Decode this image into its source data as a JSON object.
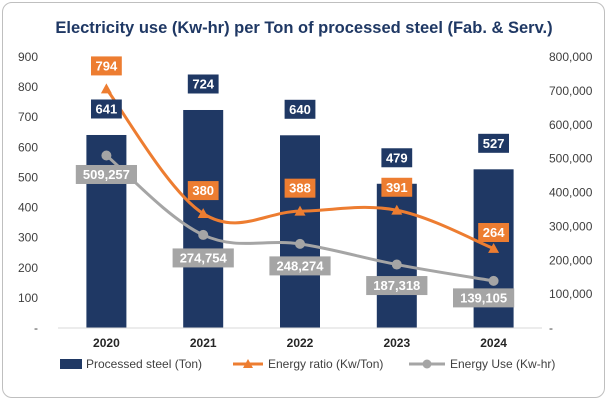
{
  "chart_data": {
    "type": "bar",
    "title": "Electricity use (Kw-hr) per Ton of processed steel (Fab. & Serv.)",
    "categories": [
      "2020",
      "2021",
      "2022",
      "2023",
      "2024"
    ],
    "y_left": {
      "range": [
        0,
        900
      ],
      "ticks": [
        0,
        100,
        200,
        300,
        400,
        500,
        600,
        700,
        800,
        900
      ],
      "tick_labels": [
        "-",
        "100",
        "200",
        "300",
        "400",
        "500",
        "600",
        "700",
        "800",
        "900"
      ]
    },
    "y_right": {
      "range": [
        0,
        800000
      ],
      "ticks": [
        0,
        100000,
        200000,
        300000,
        400000,
        500000,
        600000,
        700000,
        800000
      ],
      "tick_labels": [
        "-",
        "100,000",
        "200,000",
        "300,000",
        "400,000",
        "500,000",
        "600,000",
        "700,000",
        "800,000"
      ]
    },
    "series": [
      {
        "name": "Processed steel (Ton)",
        "kind": "bar",
        "axis": "left",
        "color": "#1f3864",
        "values": [
          641,
          724,
          640,
          479,
          527
        ],
        "labels": [
          "641",
          "724",
          "640",
          "479",
          "527"
        ]
      },
      {
        "name": "Energy ratio (Kw/Ton)",
        "kind": "line",
        "axis": "left",
        "color": "#ed7d31",
        "values": [
          794,
          380,
          388,
          391,
          264
        ],
        "labels": [
          "794",
          "380",
          "388",
          "391",
          "264"
        ]
      },
      {
        "name": "Energy Use (Kw-hr)",
        "kind": "line",
        "axis": "right",
        "color": "#a5a5a5",
        "values": [
          509257,
          274754,
          248274,
          187318,
          139105
        ],
        "labels": [
          "509,257",
          "274,754",
          "248,274",
          "187,318",
          "139,105"
        ]
      }
    ],
    "grid": false,
    "legend_position": "bottom"
  }
}
